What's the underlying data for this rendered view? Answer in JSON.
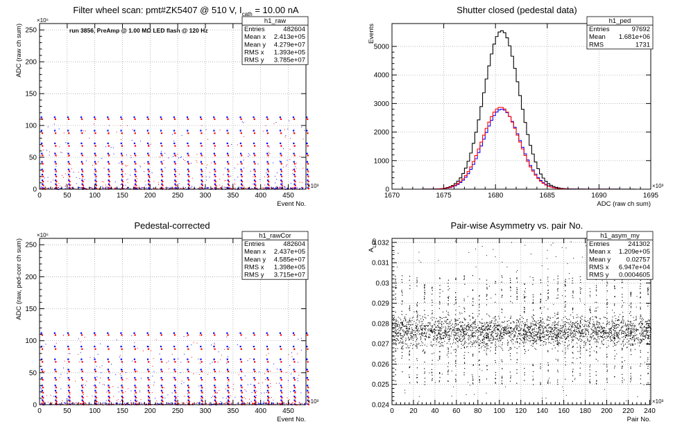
{
  "chart_data": [
    {
      "type": "scatter",
      "title": "Filter wheel scan: pmt#ZK5407 @   510 V, I",
      "title_sub": "cath",
      "title_tail": " = 10.00 nA",
      "annotation": "run 3856, PreAmp @ 1.00 MΩ LED flash @  120 Hz",
      "xlabel": "Event No.",
      "ylabel": "ADC (raw ch sum)",
      "x_exponent": "×10³",
      "y_exponent": "×10⁶",
      "xlim": [
        0,
        482
      ],
      "ylim": [
        0,
        260
      ],
      "x_ticks": [
        0,
        50,
        100,
        150,
        200,
        250,
        300,
        350,
        400,
        450
      ],
      "y_ticks": [
        0,
        50,
        100,
        150,
        200,
        250
      ],
      "grid": true,
      "stats": {
        "name": "h1_raw",
        "rows": [
          {
            "label": "Entries",
            "value": "482604"
          },
          {
            "label": "Mean x",
            "value": "2.413e+05"
          },
          {
            "label": "Mean y",
            "value": "4.279e+07"
          },
          {
            "label": "RMS x",
            "value": "1.393e+05"
          },
          {
            "label": "RMS y",
            "value": "3.785e+07"
          }
        ]
      },
      "series": [
        {
          "color": "#0000ff",
          "levels": [
            113,
            92,
            72,
            56,
            43,
            31,
            23,
            14,
            8,
            2
          ]
        },
        {
          "color": "#ff0000",
          "levels": [
            110,
            88,
            68,
            53,
            40,
            28,
            20,
            12,
            6,
            1
          ]
        }
      ],
      "step_period": 24
    },
    {
      "type": "line",
      "title": "Shutter closed (pedestal data)",
      "xlabel": "ADC (raw ch sum)",
      "ylabel": "Events",
      "x_exponent": "×10³",
      "xlim": [
        1670,
        1695
      ],
      "ylim": [
        0,
        5800
      ],
      "x_ticks": [
        1670,
        1675,
        1680,
        1685,
        1690,
        1695
      ],
      "y_ticks": [
        0,
        1000,
        2000,
        3000,
        4000,
        5000
      ],
      "grid": true,
      "stats": {
        "name": "h1_ped",
        "rows": [
          {
            "label": "Entries",
            "value": "97692"
          },
          {
            "label": "Mean",
            "value": "1.681e+06"
          },
          {
            "label": "RMS",
            "value": "1731"
          }
        ]
      },
      "series": [
        {
          "color": "#000000",
          "mean": 1680.6,
          "sigma": 1.73,
          "peak": 5550
        },
        {
          "color": "#0000ff",
          "mean": 1680.6,
          "sigma": 1.78,
          "peak": 2800
        },
        {
          "color": "#ff0000",
          "mean": 1680.5,
          "sigma": 1.78,
          "peak": 2870
        }
      ]
    },
    {
      "type": "scatter",
      "title": "Pedestal-corrected",
      "xlabel": "Event No.",
      "ylabel": "ADC (raw, ped-corr ch sum)",
      "x_exponent": "×10³",
      "y_exponent": "×10⁶",
      "xlim": [
        0,
        482
      ],
      "ylim": [
        0,
        260
      ],
      "x_ticks": [
        0,
        50,
        100,
        150,
        200,
        250,
        300,
        350,
        400,
        450
      ],
      "y_ticks": [
        0,
        50,
        100,
        150,
        200,
        250
      ],
      "grid": true,
      "stats": {
        "name": "h1_rawCor",
        "rows": [
          {
            "label": "Entries",
            "value": "482604"
          },
          {
            "label": "Mean x",
            "value": "2.437e+05"
          },
          {
            "label": "Mean y",
            "value": "4.585e+07"
          },
          {
            "label": "RMS x",
            "value": "1.398e+05"
          },
          {
            "label": "RMS y",
            "value": "3.715e+07"
          }
        ]
      },
      "series": [
        {
          "color": "#0000ff",
          "levels": [
            112,
            91,
            71,
            55,
            42,
            30,
            22,
            13,
            7,
            1
          ]
        },
        {
          "color": "#ff0000",
          "levels": [
            109,
            87,
            67,
            52,
            39,
            27,
            19,
            11,
            5,
            0.5
          ]
        }
      ],
      "step_period": 24
    },
    {
      "type": "scatter",
      "title": "Pair-wise Asymmetry vs. pair No.",
      "xlabel": "Pair No.",
      "ylabel": "A",
      "ylabel_sub": "LED",
      "x_exponent": "×10³",
      "xlim": [
        0,
        241
      ],
      "ylim": [
        0.024,
        0.0322
      ],
      "x_ticks": [
        0,
        20,
        40,
        60,
        80,
        100,
        120,
        140,
        160,
        180,
        200,
        220,
        240
      ],
      "y_ticks": [
        0.024,
        0.025,
        0.026,
        0.027,
        0.028,
        0.029,
        0.03,
        0.031,
        0.032
      ],
      "grid": true,
      "stats": {
        "name": "h1_asym_my",
        "rows": [
          {
            "label": "Entries",
            "value": "241302"
          },
          {
            "label": "Mean x",
            "value": "1.209e+05"
          },
          {
            "label": "Mean y",
            "value": "0.02757"
          },
          {
            "label": "RMS x",
            "value": "6.947e+04"
          },
          {
            "label": "RMS y",
            "value": "0.0004605"
          }
        ]
      },
      "band_center": 0.0276,
      "band_halfwidth": 0.0004,
      "spike_x": [
        3,
        9,
        16,
        23,
        30,
        37,
        44,
        52,
        59,
        67,
        75,
        81,
        88,
        96,
        102,
        110,
        116,
        123,
        131,
        138,
        145,
        154,
        161,
        168,
        175,
        184,
        190,
        200,
        207,
        214,
        222,
        231,
        238
      ]
    }
  ]
}
